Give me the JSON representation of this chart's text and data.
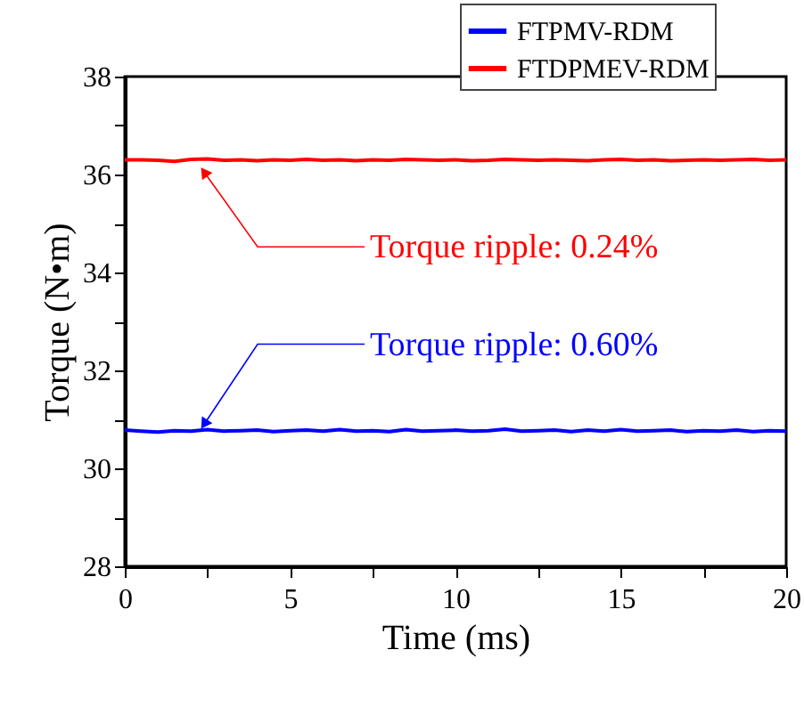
{
  "chart_data": {
    "type": "line",
    "xlabel": "Time (ms)",
    "ylabel": "Torque (N•m)",
    "x": [
      0,
      0.5,
      1,
      1.5,
      2,
      2.5,
      3,
      3.5,
      4,
      4.5,
      5,
      5.5,
      6,
      6.5,
      7,
      7.5,
      8,
      8.5,
      9,
      9.5,
      10,
      10.5,
      11,
      11.5,
      12,
      12.5,
      13,
      13.5,
      14,
      14.5,
      15,
      15.5,
      16,
      16.5,
      17,
      17.5,
      18,
      18.5,
      19,
      19.5,
      20
    ],
    "series": [
      {
        "name": "FTPMV-RDM",
        "color": "#0000ff",
        "values": [
          30.78,
          30.76,
          30.74,
          30.77,
          30.76,
          30.79,
          30.76,
          30.77,
          30.78,
          30.75,
          30.77,
          30.78,
          30.76,
          30.79,
          30.76,
          30.77,
          30.75,
          30.79,
          30.76,
          30.77,
          30.78,
          30.76,
          30.77,
          30.8,
          30.76,
          30.77,
          30.78,
          30.75,
          30.78,
          30.76,
          30.79,
          30.76,
          30.77,
          30.78,
          30.75,
          30.77,
          30.76,
          30.78,
          30.75,
          30.77,
          30.76
        ]
      },
      {
        "name": "FTDPMEV-RDM",
        "color": "#ff0000",
        "values": [
          36.3,
          36.3,
          36.29,
          36.27,
          36.31,
          36.32,
          36.29,
          36.3,
          36.28,
          36.3,
          36.29,
          36.31,
          36.29,
          36.3,
          36.28,
          36.3,
          36.29,
          36.31,
          36.3,
          36.29,
          36.3,
          36.28,
          36.29,
          36.31,
          36.3,
          36.29,
          36.3,
          36.29,
          36.28,
          36.3,
          36.31,
          36.29,
          36.3,
          36.28,
          36.29,
          36.3,
          36.29,
          36.3,
          36.31,
          36.29,
          36.3
        ]
      }
    ],
    "xlim": [
      0,
      20
    ],
    "xticks": [
      0,
      {
        "value": 2.5,
        "label": null
      },
      5,
      {
        "value": 7.5,
        "label": null
      },
      10,
      {
        "value": 12.5,
        "label": null
      },
      15,
      {
        "value": 17.5,
        "label": null
      },
      20
    ],
    "ylim": [
      28,
      38
    ],
    "yticks": [
      28,
      {
        "value": 29,
        "label": null
      },
      30,
      {
        "value": 31,
        "label": null
      },
      32,
      {
        "value": 33,
        "label": null
      },
      34,
      {
        "value": 35,
        "label": null
      },
      36,
      {
        "value": 37,
        "label": null
      },
      38
    ],
    "annotations": [
      {
        "text": "Torque ripple: 0.24%",
        "x": 2.4,
        "y": 36.05
      },
      {
        "text": "Torque ripple: 0.60%",
        "x": 2.4,
        "y": 30.9
      }
    ],
    "legend": "top right",
    "grid": false,
    "line_style": "solid",
    "marker": "none"
  }
}
